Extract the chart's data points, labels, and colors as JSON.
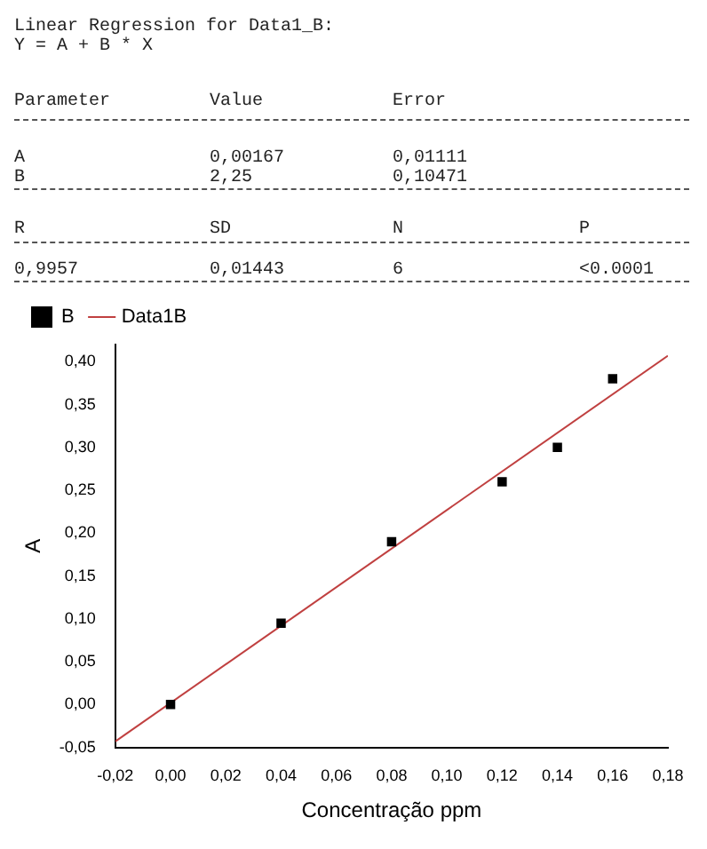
{
  "chart_data": {
    "type": "scatter",
    "xlabel": "Concentração ppm",
    "ylabel": "A",
    "annotations": [
      "Linear Regression for Data1_B:",
      "Y = A + B * X",
      "Parameter",
      "Value",
      "Error",
      "A",
      "0,00167",
      "0,01111",
      "B",
      "2,25",
      "0,10471",
      "R",
      "SD",
      "N",
      "P",
      "0,9957",
      "0,01443",
      "6",
      "<0.0001"
    ],
    "series": [
      {
        "name": "B",
        "color": "#000000",
        "marker": "square",
        "x": [
          0,
          0.04,
          0.08,
          0.12,
          0.14,
          0.16
        ],
        "values": [
          0,
          0.095,
          0.19,
          0.26,
          0.3,
          0.38
        ]
      },
      {
        "name": "Data1B",
        "type": "line",
        "color": "#c04040",
        "marker": "none",
        "line_style": "solid",
        "x": [
          -0.02,
          0.18
        ],
        "values": [
          -0.043,
          0.407
        ]
      }
    ],
    "xlim": [
      -0.02,
      0.18
    ],
    "xticks": [
      {
        "value": -0.02,
        "label": "-0,02"
      },
      {
        "value": 0,
        "label": "0,00"
      },
      {
        "value": 0.02,
        "label": "0,02"
      },
      {
        "value": 0.04,
        "label": "0,04"
      },
      {
        "value": 0.06,
        "label": "0,06"
      },
      {
        "value": 0.08,
        "label": "0,08"
      },
      {
        "value": 0.1,
        "label": "0,10"
      },
      {
        "value": 0.12,
        "label": "0,12"
      },
      {
        "value": 0.14,
        "label": "0,14"
      },
      {
        "value": 0.16,
        "label": "0,16"
      },
      {
        "value": 0.18,
        "label": "0,18"
      }
    ],
    "ylim": [
      -0.05,
      0.42
    ],
    "yticks": [
      {
        "value": -0.05,
        "label": "-0,05"
      },
      {
        "value": 0,
        "label": "0,00"
      },
      {
        "value": 0.05,
        "label": "0,05"
      },
      {
        "value": 0.1,
        "label": "0,10"
      },
      {
        "value": 0.15,
        "label": "0,15"
      },
      {
        "value": 0.2,
        "label": "0,20"
      },
      {
        "value": 0.25,
        "label": "0,25"
      },
      {
        "value": 0.3,
        "label": "0,30"
      },
      {
        "value": 0.35,
        "label": "0,35"
      },
      {
        "value": 0.4,
        "label": "0,40"
      }
    ],
    "grid": false,
    "legend": "top left"
  }
}
